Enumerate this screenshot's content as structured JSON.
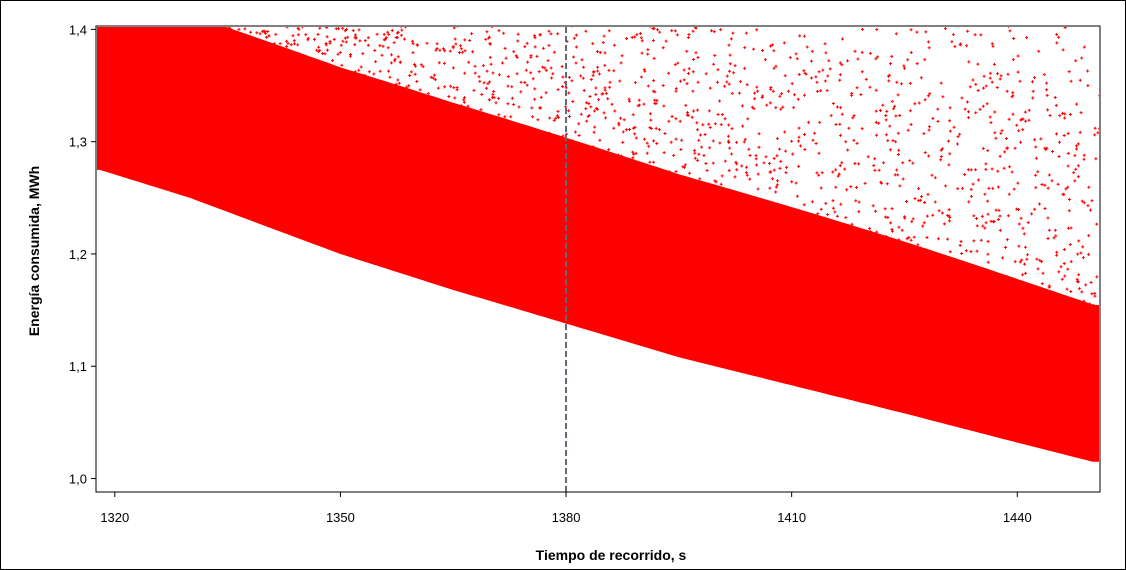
{
  "chart_data": {
    "type": "scatter",
    "xlabel": "Tiempo de recorrido, s",
    "ylabel": "Energía consumida, MWh",
    "xlim": [
      1317.5,
      1451
    ],
    "ylim": [
      0.988,
      1.403
    ],
    "x_ticks": [
      1320,
      1350,
      1380,
      1410,
      1440
    ],
    "x_tick_labels": [
      "1320",
      "1350",
      "1380",
      "1410",
      "1440"
    ],
    "y_ticks": [
      1.0,
      1.1,
      1.2,
      1.3,
      1.4
    ],
    "y_tick_labels": [
      "1,0",
      "1,1",
      "1,2",
      "1,3",
      "1,4"
    ],
    "grid": false,
    "marker": "+",
    "point_color": "#ff0000",
    "reference_line": {
      "x": 1380,
      "style": "dashed",
      "color": "#5a6a78"
    },
    "lower_envelope": {
      "x": [
        1318,
        1330,
        1350,
        1365,
        1380,
        1395,
        1410,
        1425,
        1440,
        1450
      ],
      "y": [
        1.275,
        1.25,
        1.2,
        1.168,
        1.138,
        1.108,
        1.083,
        1.058,
        1.032,
        1.015
      ]
    },
    "series": [
      {
        "values_description": "dense cloud of simulated points between the lower envelope and the top of the plot; density decreases toward the upper right"
      }
    ]
  }
}
